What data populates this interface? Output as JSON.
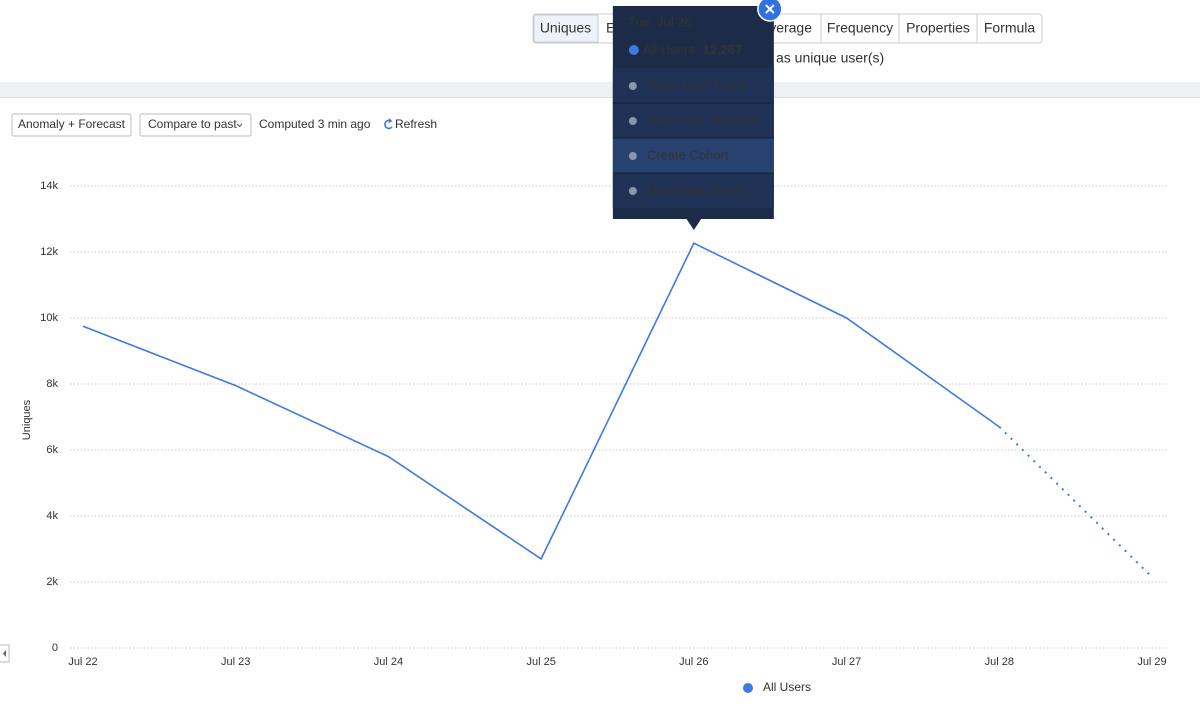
{
  "tabs": [
    "Uniques",
    "E",
    "verage",
    "Frequency",
    "Properties",
    "Formula"
  ],
  "subtitle_fragment": "as unique user(s)",
  "toolbar": {
    "anomaly": "Anomaly + Forecast",
    "compare": "Compare to past",
    "computed": "Computed 3 min ago",
    "refresh": "Refresh"
  },
  "chart_data": {
    "type": "line",
    "y_label": "Uniques",
    "categories": [
      "Jul 22",
      "Jul 23",
      "Jul 24",
      "Jul 25",
      "Jul 26",
      "Jul 27",
      "Jul 28",
      "Jul 29"
    ],
    "series": [
      {
        "name": "All Users",
        "color": "#3d7be0",
        "values": [
          9750,
          7950,
          5800,
          2700,
          12267,
          10000,
          6700,
          2150
        ],
        "value_labels": [
          null,
          null,
          null,
          null,
          "12,267",
          null,
          null,
          null
        ]
      }
    ],
    "dotted_last_segment": true,
    "ylim": [
      0,
      14000
    ],
    "yticks": [
      0,
      {
        "value": 2000,
        "label": "2k"
      },
      {
        "value": 4000,
        "label": "4k"
      },
      {
        "value": 6000,
        "label": "6k"
      },
      {
        "value": 8000,
        "label": "8k"
      },
      {
        "value": 10000,
        "label": "10k"
      },
      {
        "value": 12000,
        "label": "12k"
      },
      {
        "value": 14000,
        "label": "14k"
      }
    ],
    "grid": true
  },
  "tooltip": {
    "title": "Tue, Jul 26",
    "series_label": "All Users:",
    "point_index": 4,
    "menu": [
      "Show User Paths",
      "View User Streams",
      "Create Cohort",
      "Download Users"
    ]
  }
}
